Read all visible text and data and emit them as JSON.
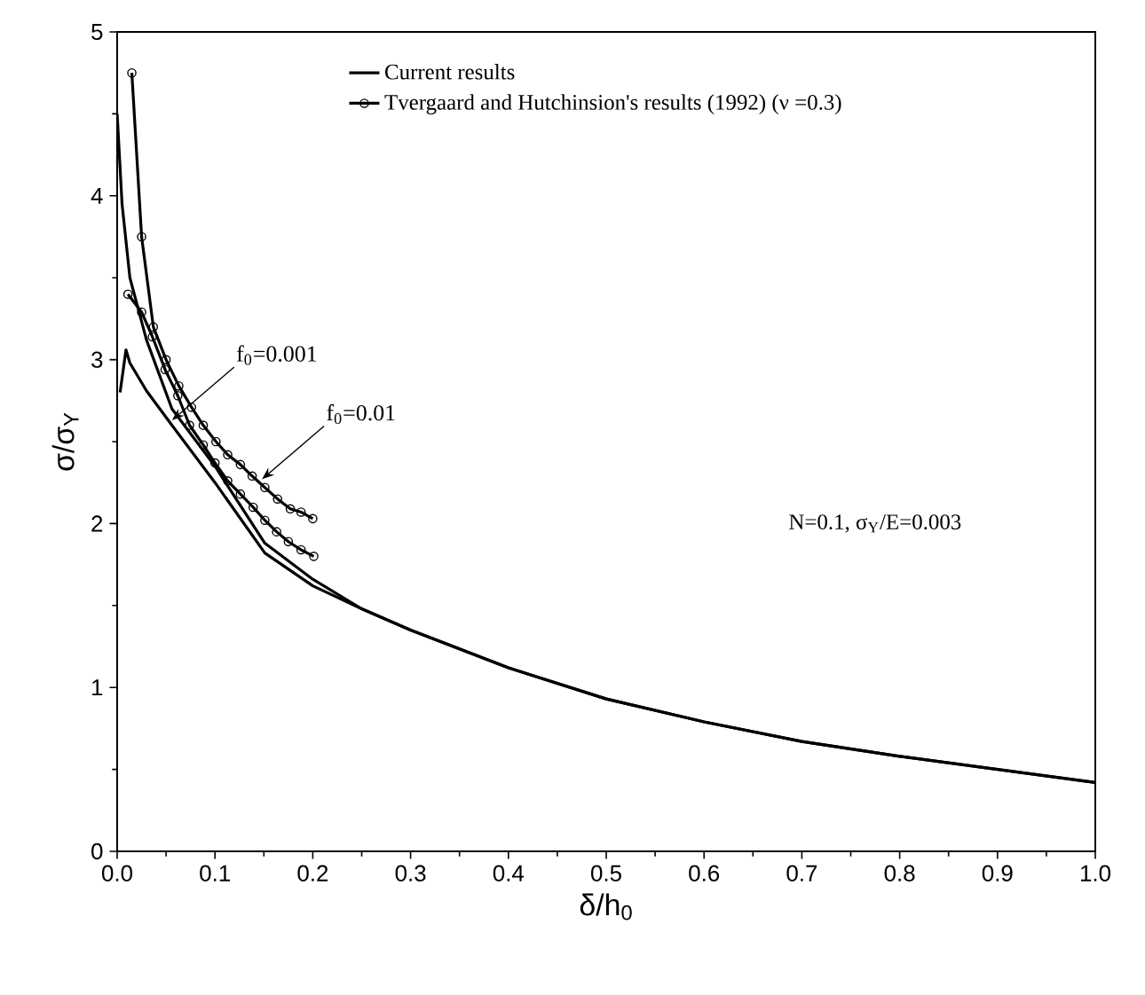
{
  "chart_data": {
    "type": "line",
    "xlabel": "δ/h$_{0}$",
    "ylabel": "σ/σ$_{Y}$",
    "xlim": [
      0,
      1
    ],
    "ylim": [
      0,
      5
    ],
    "xticks": [
      {
        "value": 0,
        "label": "0.0"
      },
      0.1,
      0.2,
      0.3,
      0.4,
      0.5,
      0.6,
      0.7,
      0.8,
      0.9,
      {
        "value": 1,
        "label": "1.0"
      }
    ],
    "yticks": [
      0,
      1,
      2,
      3,
      4,
      5
    ],
    "grid": false,
    "legend": "top",
    "series": [
      {
        "name": "Current results",
        "color": "#000000",
        "marker": "none",
        "x": [
          0.0,
          0.005,
          0.013,
          0.03,
          0.056,
          0.1,
          0.151,
          0.2,
          0.25,
          0.3,
          0.4,
          0.5,
          0.6,
          0.7,
          0.8,
          0.9,
          1.0
        ],
        "values": [
          4.5,
          3.95,
          3.5,
          3.12,
          2.7,
          2.35,
          1.88,
          1.66,
          1.48,
          1.35,
          1.12,
          0.93,
          0.79,
          0.67,
          0.58,
          0.5,
          0.42
        ]
      },
      {
        "color": "#000000",
        "marker": "none",
        "x": [
          0.003,
          0.009,
          0.013,
          0.03,
          0.056,
          0.1,
          0.151,
          0.2,
          0.25,
          0.3,
          0.4,
          0.5,
          0.6,
          0.7,
          0.8,
          0.9,
          1.0
        ],
        "values": [
          2.8,
          3.06,
          2.98,
          2.81,
          2.6,
          2.25,
          1.82,
          1.62,
          1.48,
          1.35,
          1.12,
          0.93,
          0.79,
          0.67,
          0.58,
          0.5,
          0.42
        ]
      },
      {
        "name": "Tvergaard and Hutchinsion's results (1992) (ν =0.3)",
        "color": "#000000",
        "marker": "circle",
        "x": [
          0.015,
          0.025,
          0.037,
          0.05,
          0.063,
          0.076,
          0.088,
          0.101,
          0.113,
          0.126,
          0.138,
          0.151,
          0.164,
          0.177,
          0.188,
          0.2
        ],
        "values": [
          4.75,
          3.75,
          3.2,
          3.0,
          2.84,
          2.71,
          2.6,
          2.5,
          2.42,
          2.36,
          2.29,
          2.22,
          2.15,
          2.09,
          2.07,
          2.03
        ]
      },
      {
        "color": "#000000",
        "marker": "circle",
        "x": [
          0.011,
          0.025,
          0.036,
          0.049,
          0.062,
          0.074,
          0.088,
          0.1,
          0.113,
          0.126,
          0.139,
          0.151,
          0.163,
          0.175,
          0.188,
          0.201
        ],
        "values": [
          3.4,
          3.29,
          3.14,
          2.94,
          2.78,
          2.6,
          2.48,
          2.37,
          2.26,
          2.18,
          2.1,
          2.02,
          1.95,
          1.89,
          1.84,
          1.8
        ]
      }
    ],
    "annotations": [
      {
        "text": "f$_{0}$=0.001",
        "x": 0.056,
        "y": 2.63
      },
      {
        "text": "f$_{0}$=0.01",
        "x": 0.148,
        "y": 2.27
      },
      "N=0.1, σ$_{Y}$/E=0.003"
    ]
  }
}
